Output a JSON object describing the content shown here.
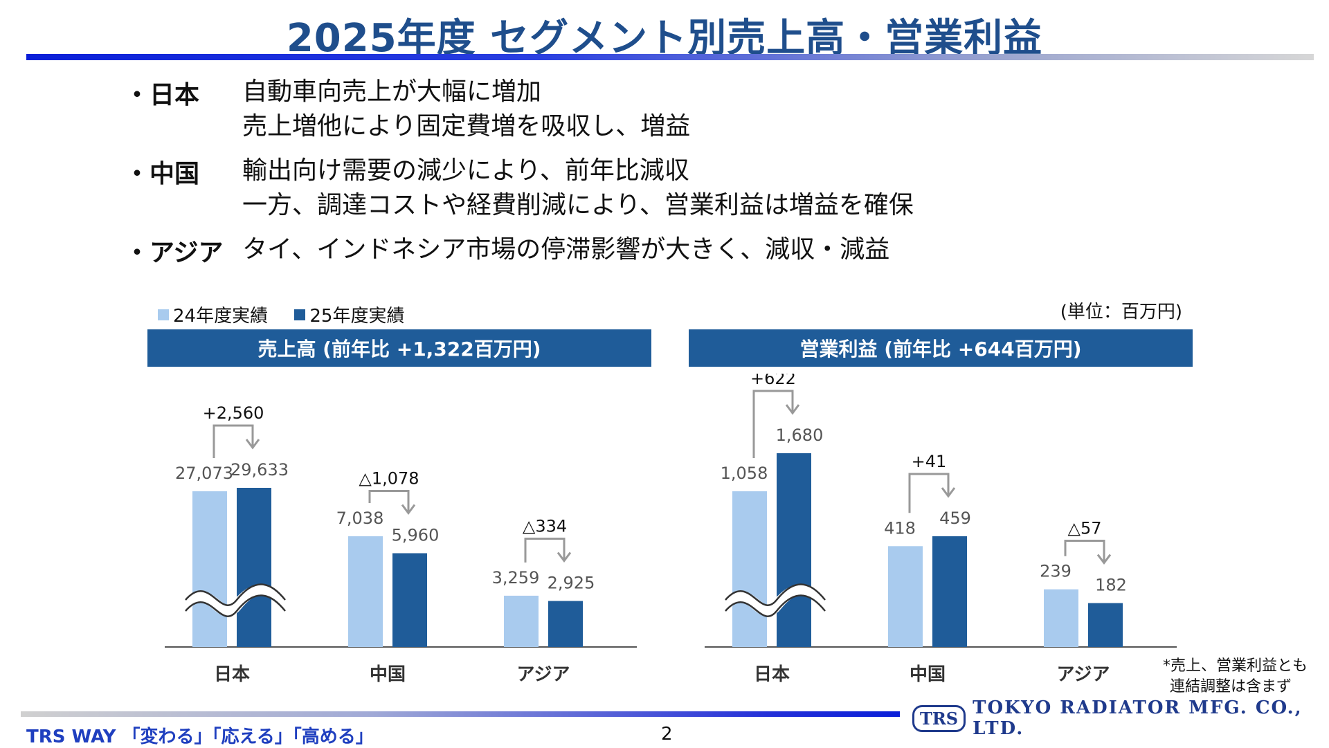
{
  "slide": {
    "title": "2025年度 セグメント別売上高・営業利益",
    "bullets": [
      {
        "head": "・日本",
        "lines": [
          "自動車向売上が大幅に増加",
          "売上増他により固定費増を吸収し、増益"
        ]
      },
      {
        "head": "・中国",
        "lines": [
          "輸出向け需要の減少により、前年比減収",
          "一方、調達コストや経費削減により、営業利益は増益を確保"
        ]
      },
      {
        "head": "・アジア",
        "lines": [
          "タイ、インドネシア市場の停滞影響が大きく、減収・減益"
        ]
      }
    ],
    "legend": [
      {
        "label": "24年度実績",
        "color": "#a9cbee"
      },
      {
        "label": "25年度実績",
        "color": "#1f5c99"
      }
    ],
    "unit": "(単位：百万円)",
    "footnote": [
      "*売上、営業利益とも",
      "連結調整は含まず"
    ],
    "footer": {
      "left": "TRS WAY 「変わる」「応える」「高める」",
      "page": "2"
    },
    "logo": {
      "badge": "TRS",
      "name": "TOKYO RADIATOR MFG. CO., LTD."
    }
  },
  "chart_data": [
    {
      "type": "bar",
      "title": "売上高 (前年比 +1,322百万円)",
      "categories": [
        "日本",
        "中国",
        "アジア"
      ],
      "series": [
        {
          "name": "24年度実績",
          "values": [
            27073,
            7038,
            3259
          ],
          "labels": [
            "27,073",
            "7,038",
            "3,259"
          ]
        },
        {
          "name": "25年度実績",
          "values": [
            29633,
            5960,
            2925
          ],
          "labels": [
            "29,633",
            "5,960",
            "2,925"
          ]
        }
      ],
      "differences": [
        "+2,560",
        "△1,078",
        "△334"
      ],
      "axis_break": "日本",
      "colors": [
        "#a9cbee",
        "#1f5c99"
      ]
    },
    {
      "type": "bar",
      "title": "営業利益 (前年比 +644百万円)",
      "categories": [
        "日本",
        "中国",
        "アジア"
      ],
      "series": [
        {
          "name": "24年度実績",
          "values": [
            1058,
            418,
            239
          ],
          "labels": [
            "1,058",
            "418",
            "239"
          ]
        },
        {
          "name": "25年度実績",
          "values": [
            1680,
            459,
            182
          ],
          "labels": [
            "1,680",
            "459",
            "182"
          ]
        }
      ],
      "differences": [
        "+622",
        "+41",
        "△57"
      ],
      "axis_break": "日本",
      "colors": [
        "#a9cbee",
        "#1f5c99"
      ]
    }
  ]
}
